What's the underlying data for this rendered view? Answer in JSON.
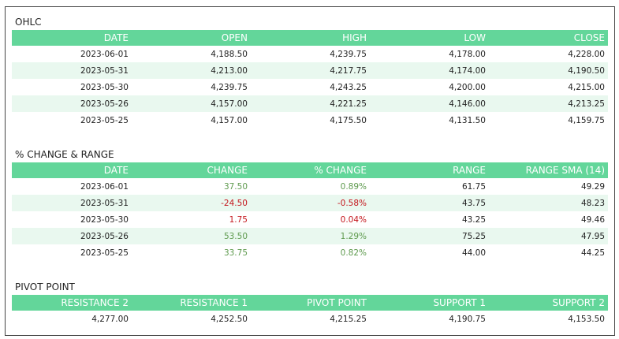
{
  "ohlc": {
    "title": "OHLC",
    "headers": [
      "DATE",
      "OPEN",
      "HIGH",
      "LOW",
      "CLOSE"
    ],
    "rows": [
      [
        "2023-06-01",
        "4,188.50",
        "4,239.75",
        "4,178.00",
        "4,228.00"
      ],
      [
        "2023-05-31",
        "4,213.00",
        "4,217.75",
        "4,174.00",
        "4,190.50"
      ],
      [
        "2023-05-30",
        "4,239.75",
        "4,243.25",
        "4,200.00",
        "4,215.00"
      ],
      [
        "2023-05-26",
        "4,157.00",
        "4,221.25",
        "4,146.00",
        "4,213.25"
      ],
      [
        "2023-05-25",
        "4,157.00",
        "4,175.50",
        "4,131.50",
        "4,159.75"
      ]
    ]
  },
  "change": {
    "title": "% CHANGE & RANGE",
    "headers": [
      "DATE",
      "CHANGE",
      "% CHANGE",
      "RANGE",
      "RANGE SMA (14)"
    ],
    "rows": [
      [
        "2023-06-01",
        "37.50",
        "0.89%",
        "61.75",
        "49.29"
      ],
      [
        "2023-05-31",
        "-24.50",
        "-0.58%",
        "43.75",
        "48.23"
      ],
      [
        "2023-05-30",
        "1.75",
        "0.04%",
        "43.25",
        "49.46"
      ],
      [
        "2023-05-26",
        "53.50",
        "1.29%",
        "75.25",
        "47.95"
      ],
      [
        "2023-05-25",
        "33.75",
        "0.82%",
        "44.00",
        "44.25"
      ]
    ],
    "row_colors": [
      "pos",
      "neg",
      "neg",
      "pos",
      "pos"
    ]
  },
  "pivot": {
    "title": "PIVOT POINT",
    "headers": [
      "RESISTANCE 2",
      "RESISTANCE 1",
      "PIVOT POINT",
      "SUPPORT 1",
      "SUPPORT 2"
    ],
    "rows": [
      [
        "4,277.00",
        "4,252.50",
        "4,215.25",
        "4,190.75",
        "4,153.50"
      ]
    ]
  },
  "colors": {
    "header_bg": "#63d69a",
    "alt_row_bg": "#e9f8ef",
    "positive": "#5e9a4e",
    "negative": "#c4161c"
  }
}
